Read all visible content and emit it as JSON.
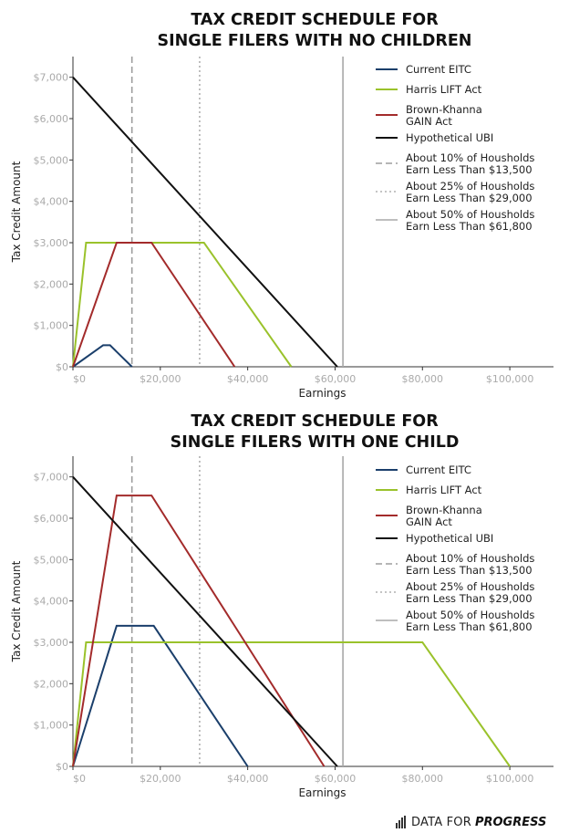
{
  "chart_data": [
    {
      "type": "line",
      "title_lines": [
        "TAX CREDIT SCHEDULE FOR",
        "SINGLE FILERS WITH NO CHILDREN"
      ],
      "xlabel": "Earnings",
      "ylabel": "Tax Credit Amount",
      "xlim": [
        0,
        110000
      ],
      "ylim": [
        0,
        7500
      ],
      "x_ticks": [
        0,
        20000,
        40000,
        60000,
        80000,
        100000
      ],
      "x_tick_labels": [
        "$0",
        "$20,000",
        "$40,000",
        "$60,000",
        "$80,000",
        "$100,000"
      ],
      "y_ticks": [
        0,
        1000,
        2000,
        3000,
        4000,
        5000,
        6000,
        7000
      ],
      "y_tick_labels": [
        "$0",
        "$1,000",
        "$2,000",
        "$3,000",
        "$4,000",
        "$5,000",
        "$6,000",
        "$7,000"
      ],
      "series": [
        {
          "name": "Current EITC",
          "label_lines": [
            "Current EITC"
          ],
          "color": "#1b3f6b",
          "style": "solid",
          "points": [
            [
              0,
              0
            ],
            [
              6900,
              520
            ],
            [
              8500,
              520
            ],
            [
              13500,
              0
            ]
          ]
        },
        {
          "name": "Harris LIFT Act",
          "label_lines": [
            "Harris LIFT Act"
          ],
          "color": "#9ac22b",
          "style": "solid",
          "points": [
            [
              0,
              0
            ],
            [
              3000,
              3000
            ],
            [
              30000,
              3000
            ],
            [
              50000,
              0
            ]
          ]
        },
        {
          "name": "Brown-Khanna GAIN Act",
          "label_lines": [
            "Brown-Khanna",
            "GAIN Act"
          ],
          "color": "#a32b2b",
          "style": "solid",
          "points": [
            [
              0,
              0
            ],
            [
              10000,
              3000
            ],
            [
              18000,
              3000
            ],
            [
              37000,
              0
            ]
          ]
        },
        {
          "name": "Hypothetical UBI",
          "label_lines": [
            "Hypothetical UBI"
          ],
          "color": "#111111",
          "style": "solid",
          "points": [
            [
              0,
              7000
            ],
            [
              60500,
              0
            ]
          ]
        }
      ],
      "reference_lines": [
        {
          "name": "About 10% of Housholds Earn Less Than $13,500",
          "label_lines": [
            "About 10% of Housholds",
            "Earn Less Than $13,500"
          ],
          "x": 13500,
          "color": "#9e9e9e",
          "style": "dashed"
        },
        {
          "name": "About 25% of Housholds Earn Less Than $29,000",
          "label_lines": [
            "About 25% of Housholds",
            "Earn Less Than $29,000"
          ],
          "x": 29000,
          "color": "#b0b0b0",
          "style": "dotted"
        },
        {
          "name": "About 50% of Housholds Earn Less Than $61,800",
          "label_lines": [
            "About 50% of Housholds",
            "Earn Less Than $61,800"
          ],
          "x": 61800,
          "color": "#a8a8a8",
          "style": "solid"
        }
      ],
      "legend_position": "top-right"
    },
    {
      "type": "line",
      "title_lines": [
        "TAX CREDIT SCHEDULE FOR",
        "SINGLE FILERS WITH ONE CHILD"
      ],
      "xlabel": "Earnings",
      "ylabel": "Tax Credit Amount",
      "xlim": [
        0,
        110000
      ],
      "ylim": [
        0,
        7500
      ],
      "x_ticks": [
        0,
        20000,
        40000,
        60000,
        80000,
        100000
      ],
      "x_tick_labels": [
        "$0",
        "$20,000",
        "$40,000",
        "$60,000",
        "$80,000",
        "$100,000"
      ],
      "y_ticks": [
        0,
        1000,
        2000,
        3000,
        4000,
        5000,
        6000,
        7000
      ],
      "y_tick_labels": [
        "$0",
        "$1,000",
        "$2,000",
        "$3,000",
        "$4,000",
        "$5,000",
        "$6,000",
        "$7,000"
      ],
      "series": [
        {
          "name": "Current EITC",
          "label_lines": [
            "Current EITC"
          ],
          "color": "#1b3f6b",
          "style": "solid",
          "points": [
            [
              0,
              0
            ],
            [
              10000,
              3400
            ],
            [
              18500,
              3400
            ],
            [
              40000,
              0
            ]
          ]
        },
        {
          "name": "Harris LIFT Act",
          "label_lines": [
            "Harris LIFT Act"
          ],
          "color": "#9ac22b",
          "style": "solid",
          "points": [
            [
              0,
              0
            ],
            [
              3000,
              3000
            ],
            [
              80000,
              3000
            ],
            [
              100000,
              0
            ]
          ]
        },
        {
          "name": "Brown-Khanna GAIN Act",
          "label_lines": [
            "Brown-Khanna",
            "GAIN Act"
          ],
          "color": "#a32b2b",
          "style": "solid",
          "points": [
            [
              0,
              0
            ],
            [
              10000,
              6550
            ],
            [
              18000,
              6550
            ],
            [
              57500,
              0
            ]
          ]
        },
        {
          "name": "Hypothetical UBI",
          "label_lines": [
            "Hypothetical UBI"
          ],
          "color": "#111111",
          "style": "solid",
          "points": [
            [
              0,
              7000
            ],
            [
              60500,
              0
            ]
          ]
        }
      ],
      "reference_lines": [
        {
          "name": "About 10% of Housholds Earn Less Than $13,500",
          "label_lines": [
            "About 10% of Housholds",
            "Earn Less Than $13,500"
          ],
          "x": 13500,
          "color": "#9e9e9e",
          "style": "dashed"
        },
        {
          "name": "About 25% of Housholds Earn Less Than $29,000",
          "label_lines": [
            "About 25% of Housholds",
            "Earn Less Than $29,000"
          ],
          "x": 29000,
          "color": "#b0b0b0",
          "style": "dotted"
        },
        {
          "name": "About 50% of Housholds Earn Less Than $61,800",
          "label_lines": [
            "About 50% of Housholds",
            "Earn Less Than $61,800"
          ],
          "x": 61800,
          "color": "#a8a8a8",
          "style": "solid"
        }
      ],
      "legend_position": "top-right"
    }
  ],
  "branding": {
    "brand_regular": "DATA FOR",
    "brand_bold": "PROGRESS",
    "icon": "bar-chart-icon"
  }
}
